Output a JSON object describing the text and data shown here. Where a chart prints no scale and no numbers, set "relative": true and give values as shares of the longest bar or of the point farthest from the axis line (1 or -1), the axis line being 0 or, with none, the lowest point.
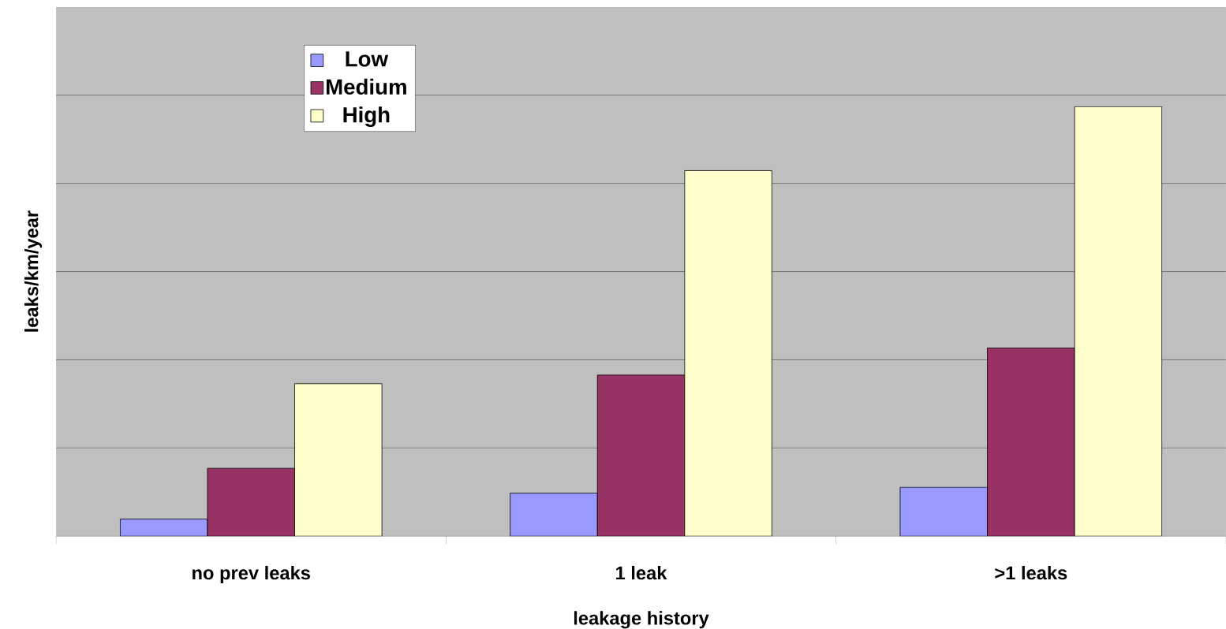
{
  "chart_data": {
    "type": "bar",
    "xlabel": "leakage history",
    "ylabel": "leaks/km/year",
    "categories": [
      "no prev leaks",
      "1 leak",
      ">1 leaks"
    ],
    "relative": true,
    "grid": "y",
    "legend": "top left",
    "series": [
      {
        "name": "Low",
        "color": "#9999ff",
        "values": [
          0.04,
          0.1,
          0.114
        ]
      },
      {
        "name": "Medium",
        "color": "#993366",
        "values": [
          0.158,
          0.375,
          0.438
        ]
      },
      {
        "name": "High",
        "color": "#ffffcc",
        "values": [
          0.355,
          0.851,
          1.0
        ]
      }
    ]
  }
}
